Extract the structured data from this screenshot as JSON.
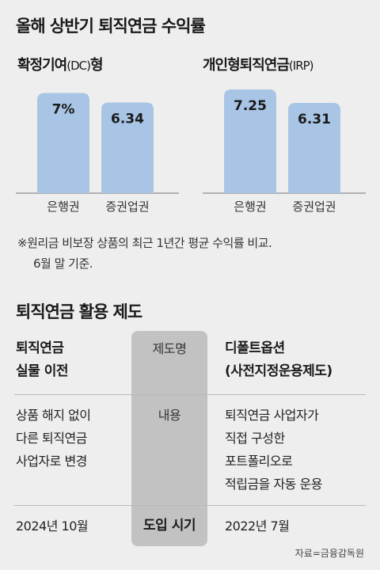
{
  "title": "올해 상반기 퇴직연금 수익률",
  "chart_data": [
    {
      "type": "bar",
      "title_main": "확정기여",
      "title_paren": "(DC)",
      "title_tail": "형",
      "categories": [
        "은행권",
        "증권업권"
      ],
      "values": [
        7,
        6.34
      ],
      "value_labels": [
        "7%",
        "6.34"
      ],
      "color": "#a9c5e6"
    },
    {
      "type": "bar",
      "title_main": "개인형퇴직연금",
      "title_paren": "(IRP)",
      "title_tail": "",
      "categories": [
        "은행권",
        "증권업권"
      ],
      "values": [
        7.25,
        6.31
      ],
      "value_labels": [
        "7.25",
        "6.31"
      ],
      "color": "#a9c5e6"
    }
  ],
  "note": {
    "line1": "※원리금 비보장 상품의 최근 1년간 평균 수익률 비교.",
    "line2": "6월 말 기준."
  },
  "section_title": "퇴직연금 활용 제도",
  "table": {
    "header": {
      "left_line1": "퇴직연금",
      "left_line2": "실물 이전",
      "middle": "제도명",
      "right_line1": "디폴트옵션",
      "right_line2": "(사전지정운용제도)"
    },
    "content": {
      "left": [
        "상품 해지 없이",
        "다른 퇴직연금",
        "사업자로 변경"
      ],
      "middle": "내용",
      "right": [
        "퇴직연금 사업자가",
        "직접 구성한",
        "포트폴리오로",
        "적립금을 자동 운용"
      ]
    },
    "date": {
      "left": "2024년 10월",
      "middle": "도입 시기",
      "right": "2022년 7월"
    }
  },
  "source": "자료=금융감독원"
}
